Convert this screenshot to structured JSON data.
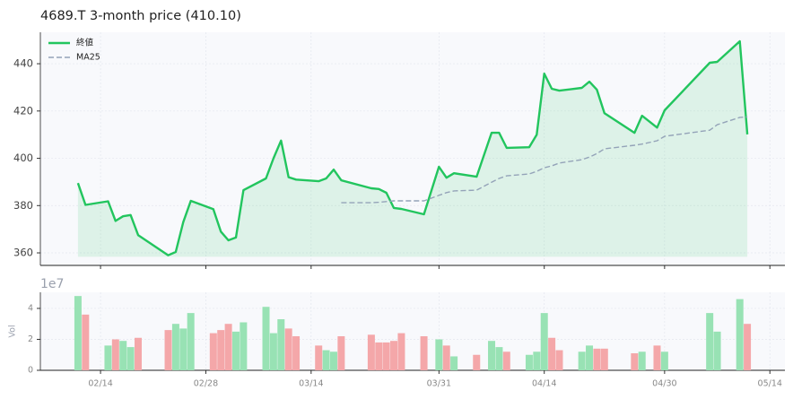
{
  "chart_data": [
    {
      "type": "line",
      "title": "4689.T  3-month price (410.10)",
      "x": [
        "02/11",
        "02/12",
        "02/15",
        "02/16",
        "02/17",
        "02/18",
        "02/19",
        "02/23",
        "02/24",
        "02/25",
        "02/26",
        "03/01",
        "03/02",
        "03/03",
        "03/04",
        "03/05",
        "03/08",
        "03/09",
        "03/10",
        "03/11",
        "03/12",
        "03/15",
        "03/16",
        "03/17",
        "03/18",
        "03/22",
        "03/23",
        "03/24",
        "03/25",
        "03/26",
        "03/29",
        "03/31",
        "04/01",
        "04/02",
        "04/05",
        "04/07",
        "04/08",
        "04/09",
        "04/12",
        "04/13",
        "04/14",
        "04/15",
        "04/16",
        "04/19",
        "04/20",
        "04/21",
        "04/22",
        "04/26",
        "04/27",
        "04/29",
        "04/30",
        "05/06",
        "05/07",
        "05/10",
        "05/11"
      ],
      "series": [
        {
          "name": "終値",
          "color": "#22c55e",
          "fill": true,
          "dashed": false,
          "values": [
            389.5,
            380.3,
            381.8,
            373.5,
            375.5,
            376,
            367.5,
            359,
            360.4,
            373,
            382,
            378.5,
            369,
            365.3,
            366.5,
            386.5,
            391.5,
            400,
            407.5,
            392,
            391,
            390.3,
            391.5,
            395.2,
            390.7,
            387.3,
            387,
            385.4,
            379,
            378.6,
            376.3,
            396.4,
            391.8,
            393.7,
            392.2,
            410.8,
            410.8,
            404.4,
            404.7,
            410,
            435.8,
            429.4,
            428.6,
            429.8,
            432.4,
            429,
            419.1,
            410.8,
            418,
            413,
            420.3,
            440.4,
            440.8,
            449.5,
            410.1
          ]
        },
        {
          "name": "MA25",
          "color": "#94a3b8",
          "fill": false,
          "dashed": true,
          "values": [
            null,
            null,
            null,
            null,
            null,
            null,
            null,
            null,
            null,
            null,
            null,
            null,
            null,
            null,
            null,
            null,
            null,
            null,
            null,
            null,
            null,
            null,
            null,
            null,
            381.2,
            381.2,
            381.4,
            381.7,
            382,
            382,
            382,
            384.3,
            385.5,
            386.2,
            386.5,
            389.9,
            391.5,
            392.6,
            393.4,
            394.5,
            396,
            396.8,
            398,
            399.4,
            400.5,
            402,
            404,
            405.5,
            406,
            407.4,
            409.3,
            411.9,
            414.2,
            417.3,
            417.5
          ]
        }
      ],
      "xlim": [
        "02/06",
        "05/16"
      ],
      "xticks": [
        "02/14",
        "02/28",
        "03/14",
        "03/31",
        "04/14",
        "04/30",
        "05/14"
      ],
      "ylim": [
        354.7,
        453.3
      ],
      "yticks": [
        360,
        380,
        400,
        420,
        440
      ],
      "grid": true,
      "legend": "upper left"
    },
    {
      "type": "bar",
      "ylabel": "Vol",
      "offset_label": "1e7",
      "x": [
        "02/11",
        "02/12",
        "02/15",
        "02/16",
        "02/17",
        "02/18",
        "02/19",
        "02/23",
        "02/24",
        "02/25",
        "02/26",
        "03/01",
        "03/02",
        "03/03",
        "03/04",
        "03/05",
        "03/08",
        "03/09",
        "03/10",
        "03/11",
        "03/12",
        "03/15",
        "03/16",
        "03/17",
        "03/18",
        "03/22",
        "03/23",
        "03/24",
        "03/25",
        "03/26",
        "03/29",
        "03/31",
        "04/01",
        "04/02",
        "04/05",
        "04/07",
        "04/08",
        "04/09",
        "04/12",
        "04/13",
        "04/14",
        "04/15",
        "04/16",
        "04/19",
        "04/20",
        "04/21",
        "04/22",
        "04/26",
        "04/27",
        "04/29",
        "04/30",
        "05/06",
        "05/07",
        "05/10",
        "05/11"
      ],
      "values": [
        4.8,
        3.6,
        1.6,
        2.0,
        1.9,
        1.5,
        2.1,
        2.6,
        3.0,
        2.7,
        3.7,
        2.4,
        2.6,
        3.0,
        2.5,
        3.1,
        4.1,
        2.4,
        3.3,
        2.7,
        2.2,
        1.6,
        1.3,
        1.2,
        2.2,
        2.3,
        1.8,
        1.8,
        1.9,
        2.4,
        2.2,
        2.0,
        1.6,
        0.9,
        1.0,
        1.9,
        1.5,
        1.2,
        1.0,
        1.2,
        3.7,
        2.1,
        1.3,
        1.2,
        1.6,
        1.4,
        1.4,
        1.1,
        1.2,
        1.6,
        1.2,
        3.7,
        2.5,
        4.6,
        3.0
      ],
      "colors": [
        "#98e2b4",
        "#f4a7a9",
        "#98e2b4",
        "#f4a7a9",
        "#98e2b4",
        "#98e2b4",
        "#f4a7a9",
        "#f4a7a9",
        "#98e2b4",
        "#98e2b4",
        "#98e2b4",
        "#f4a7a9",
        "#f4a7a9",
        "#f4a7a9",
        "#98e2b4",
        "#98e2b4",
        "#98e2b4",
        "#98e2b4",
        "#98e2b4",
        "#f4a7a9",
        "#f4a7a9",
        "#f4a7a9",
        "#98e2b4",
        "#98e2b4",
        "#f4a7a9",
        "#f4a7a9",
        "#f4a7a9",
        "#f4a7a9",
        "#f4a7a9",
        "#f4a7a9",
        "#f4a7a9",
        "#98e2b4",
        "#f4a7a9",
        "#98e2b4",
        "#f4a7a9",
        "#98e2b4",
        "#98e2b4",
        "#f4a7a9",
        "#98e2b4",
        "#98e2b4",
        "#98e2b4",
        "#f4a7a9",
        "#f4a7a9",
        "#98e2b4",
        "#98e2b4",
        "#f4a7a9",
        "#f4a7a9",
        "#f4a7a9",
        "#98e2b4",
        "#f4a7a9",
        "#98e2b4",
        "#98e2b4",
        "#98e2b4",
        "#98e2b4",
        "#f4a7a9"
      ],
      "xlim": [
        "02/06",
        "05/16"
      ],
      "xticks": [
        "02/14",
        "02/28",
        "03/14",
        "03/31",
        "04/14",
        "04/30",
        "05/14"
      ],
      "ylim": [
        0,
        5.04
      ],
      "yticks": [
        0,
        2,
        4
      ],
      "grid": true
    }
  ]
}
